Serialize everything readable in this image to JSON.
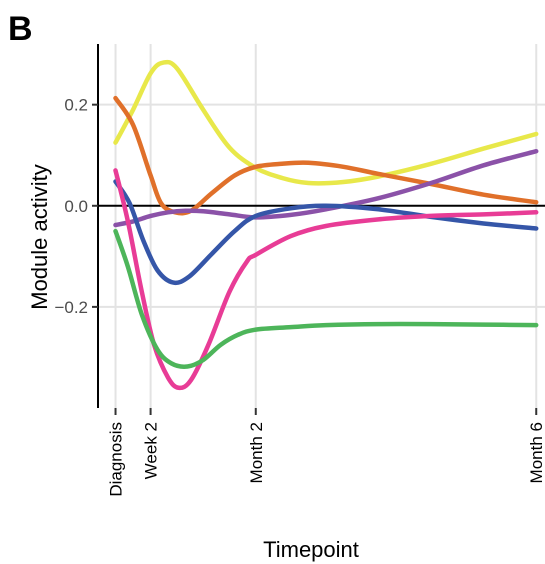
{
  "panel_label": "B",
  "chart_data": {
    "type": "line",
    "title": "",
    "xlabel": "Timepoint",
    "ylabel": "Module activity",
    "x_ticks": [
      {
        "label": "Diagnosis",
        "value": 0
      },
      {
        "label": "Week 2",
        "value": 2
      },
      {
        "label": "Month 2",
        "value": 8
      },
      {
        "label": "Month 6",
        "value": 24
      }
    ],
    "xlim": [
      -1,
      24.5
    ],
    "y_ticks": [
      0.2,
      0.0,
      -0.2
    ],
    "y_tick_labels": [
      "0.2",
      "0.0",
      "−0.2"
    ],
    "ylim": [
      -0.4,
      0.32
    ],
    "grid": true,
    "zero_line": true,
    "series": [
      {
        "color": "#E8E84A",
        "points": [
          [
            0,
            0.125
          ],
          [
            1,
            0.19
          ],
          [
            2,
            0.262
          ],
          [
            2.7,
            0.283
          ],
          [
            3.5,
            0.272
          ],
          [
            5,
            0.19
          ],
          [
            6.5,
            0.115
          ],
          [
            8,
            0.075
          ],
          [
            9.5,
            0.055
          ],
          [
            11,
            0.045
          ],
          [
            13,
            0.047
          ],
          [
            15,
            0.058
          ],
          [
            18,
            0.083
          ],
          [
            21,
            0.113
          ],
          [
            24,
            0.142
          ]
        ]
      },
      {
        "color": "#E0702A",
        "points": [
          [
            0,
            0.213
          ],
          [
            1,
            0.16
          ],
          [
            2,
            0.06
          ],
          [
            2.6,
            0.005
          ],
          [
            3.4,
            -0.013
          ],
          [
            4.3,
            -0.01
          ],
          [
            5.5,
            0.025
          ],
          [
            6.8,
            0.06
          ],
          [
            8,
            0.077
          ],
          [
            9.5,
            0.083
          ],
          [
            11,
            0.085
          ],
          [
            13,
            0.077
          ],
          [
            15,
            0.063
          ],
          [
            18,
            0.043
          ],
          [
            21,
            0.022
          ],
          [
            24,
            0.007
          ]
        ]
      },
      {
        "color": "#8B52A8",
        "points": [
          [
            0,
            -0.038
          ],
          [
            1,
            -0.031
          ],
          [
            2,
            -0.02
          ],
          [
            3,
            -0.013
          ],
          [
            4,
            -0.01
          ],
          [
            5,
            -0.011
          ],
          [
            6.5,
            -0.017
          ],
          [
            8,
            -0.023
          ],
          [
            10,
            -0.018
          ],
          [
            12,
            -0.007
          ],
          [
            15,
            0.015
          ],
          [
            18,
            0.045
          ],
          [
            21,
            0.08
          ],
          [
            24,
            0.108
          ]
        ]
      },
      {
        "color": "#3556A8",
        "points": [
          [
            0,
            0.048
          ],
          [
            0.8,
            0.005
          ],
          [
            1.6,
            -0.07
          ],
          [
            2.4,
            -0.128
          ],
          [
            3.3,
            -0.152
          ],
          [
            4.2,
            -0.14
          ],
          [
            5.5,
            -0.095
          ],
          [
            6.8,
            -0.05
          ],
          [
            8,
            -0.02
          ],
          [
            10,
            -0.005
          ],
          [
            12,
            0
          ],
          [
            15,
            -0.007
          ],
          [
            18,
            -0.022
          ],
          [
            21,
            -0.035
          ],
          [
            24,
            -0.045
          ]
        ]
      },
      {
        "color": "#E83C96",
        "points": [
          [
            0,
            0.07
          ],
          [
            0.7,
            -0.03
          ],
          [
            1.5,
            -0.17
          ],
          [
            2.2,
            -0.275
          ],
          [
            3,
            -0.34
          ],
          [
            3.6,
            -0.36
          ],
          [
            4.3,
            -0.345
          ],
          [
            5.3,
            -0.275
          ],
          [
            6.5,
            -0.17
          ],
          [
            7.5,
            -0.11
          ],
          [
            8,
            -0.097
          ],
          [
            10,
            -0.06
          ],
          [
            12,
            -0.04
          ],
          [
            15,
            -0.027
          ],
          [
            18,
            -0.02
          ],
          [
            21,
            -0.017
          ],
          [
            24,
            -0.013
          ]
        ]
      },
      {
        "color": "#4DB55A",
        "points": [
          [
            0,
            -0.05
          ],
          [
            0.7,
            -0.12
          ],
          [
            1.5,
            -0.215
          ],
          [
            2.4,
            -0.285
          ],
          [
            3.2,
            -0.312
          ],
          [
            4.1,
            -0.318
          ],
          [
            5,
            -0.305
          ],
          [
            6,
            -0.275
          ],
          [
            7,
            -0.255
          ],
          [
            8,
            -0.245
          ],
          [
            10,
            -0.24
          ],
          [
            12,
            -0.236
          ],
          [
            15,
            -0.234
          ],
          [
            18,
            -0.234
          ],
          [
            21,
            -0.235
          ],
          [
            24,
            -0.236
          ]
        ]
      }
    ]
  }
}
